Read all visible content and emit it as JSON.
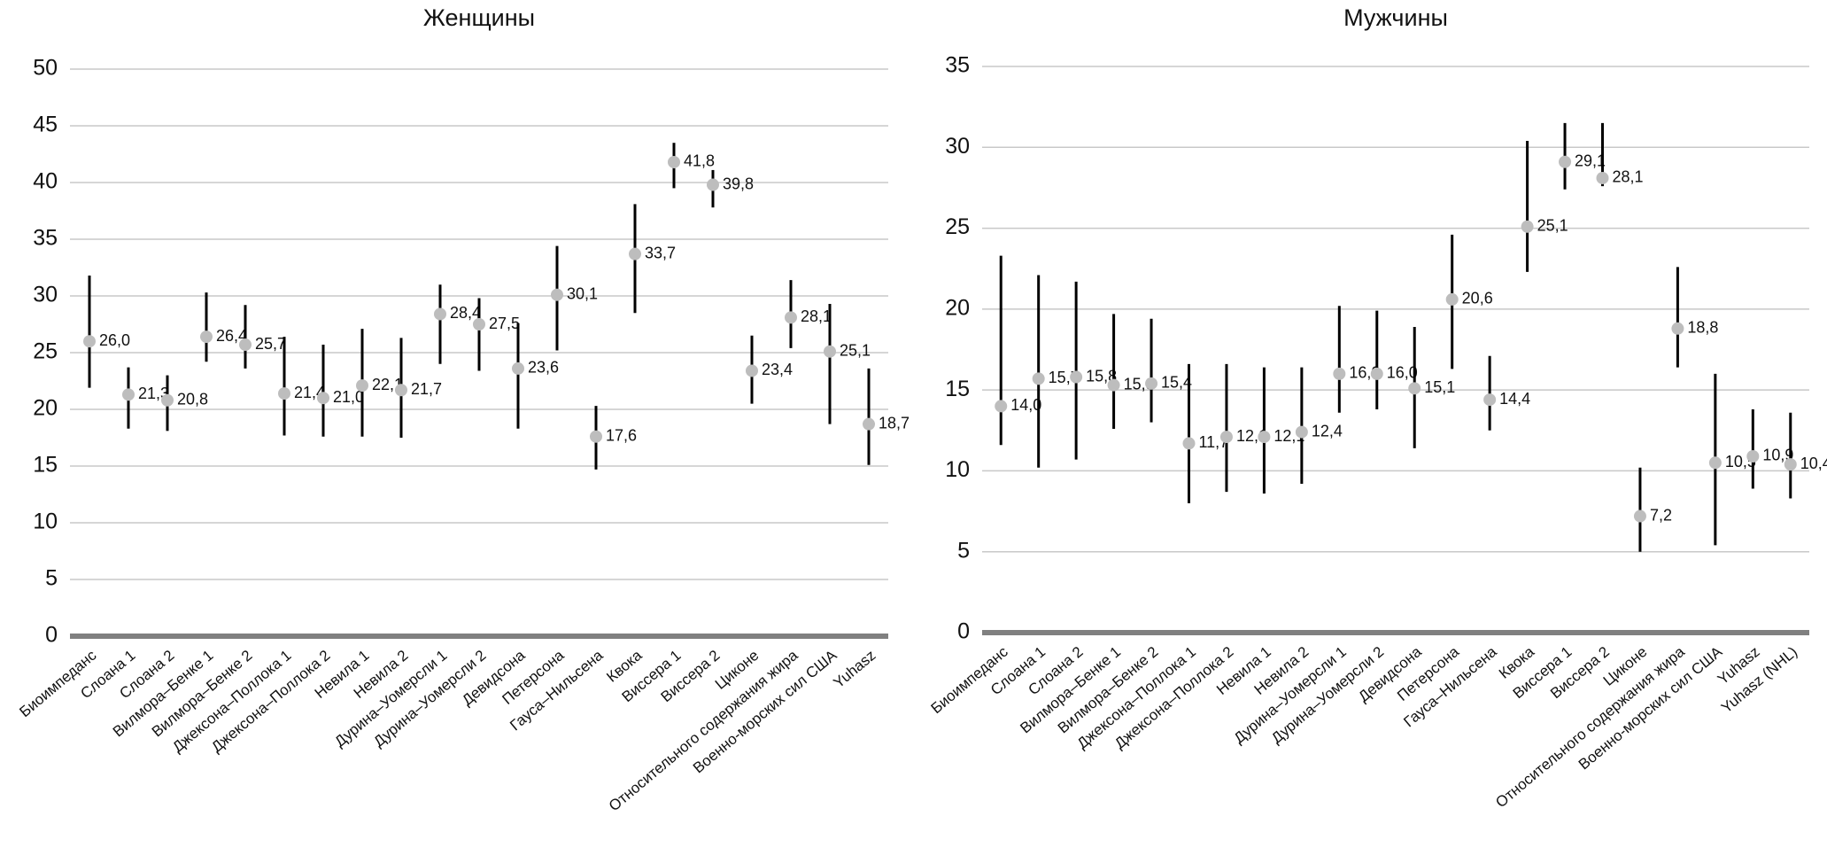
{
  "chart_data": [
    {
      "type": "dot",
      "title": "Женщины",
      "categories": [
        "Биоимпеданс",
        "Слоана 1",
        "Слоана 2",
        "Вилмора–Бенке 1",
        "Вилмора–Бенке 2",
        "Джексона–Поллока 1",
        "Джексона–Поллока 2",
        "Невила 1",
        "Невила 2",
        "Дурина–Уомерсли 1",
        "Дурина–Уомерсли 2",
        "Девидсона",
        "Петерсона",
        "Гауса–Нильсена",
        "Квока",
        "Виссера 1",
        "Виссера 2",
        "Циконе",
        "Относительного содержания жира",
        "Военно-морских сил США",
        "Yuhasz"
      ],
      "values": [
        26.0,
        21.3,
        20.8,
        26.4,
        25.7,
        21.4,
        21.0,
        22.1,
        21.7,
        28.4,
        27.5,
        23.6,
        30.1,
        17.6,
        33.7,
        41.8,
        39.8,
        23.4,
        28.1,
        25.1,
        18.7
      ],
      "value_labels": [
        "26,0",
        "21,3",
        "20,8",
        "26,4",
        "25,7",
        "21,4",
        "21,0",
        "22,1",
        "21,7",
        "28,4",
        "27,5",
        "23,6",
        "30,1",
        "17,6",
        "33,7",
        "41,8",
        "39,8",
        "23,4",
        "28,1",
        "25,1",
        "18,7"
      ],
      "low": [
        21.9,
        18.3,
        18.1,
        24.2,
        23.6,
        17.7,
        17.6,
        17.6,
        17.5,
        24.0,
        23.4,
        18.3,
        25.2,
        14.7,
        28.5,
        39.5,
        37.8,
        20.5,
        25.4,
        18.7,
        15.1
      ],
      "high": [
        31.8,
        23.7,
        23.0,
        30.3,
        29.2,
        26.4,
        25.7,
        27.1,
        26.3,
        31.0,
        29.8,
        27.6,
        34.4,
        20.3,
        38.1,
        43.5,
        41.1,
        26.5,
        31.4,
        29.3,
        23.6
      ],
      "color": "#bdbdbd",
      "bar_color": "#000000",
      "ylim": [
        0,
        50
      ],
      "yticks": [
        0,
        5,
        10,
        15,
        20,
        25,
        30,
        35,
        40,
        45,
        50
      ],
      "grid": true
    },
    {
      "type": "dot",
      "title": "Мужчины",
      "categories": [
        "Биоимпеданс",
        "Слоана 1",
        "Слоана 2",
        "Вилмора–Бенке 1",
        "Вилмора–Бенке 2",
        "Джексона–Поллока 1",
        "Джексона–Поллока 2",
        "Невила 1",
        "Невила 2",
        "Дурина–Уомерсли 1",
        "Дурина–Уомерсли 2",
        "Девидсона",
        "Петерсона",
        "Гауса–Нильсена",
        "Квока",
        "Виссера 1",
        "Виссера 2",
        "Циконе",
        "Относительного содержания жира",
        "Военно-морских сил США",
        "Yuhasz",
        "Yuhasz (NHL)"
      ],
      "values": [
        14.0,
        15.7,
        15.8,
        15.3,
        15.4,
        11.7,
        12.1,
        12.1,
        12.4,
        16.0,
        16.0,
        15.1,
        20.6,
        14.4,
        25.1,
        29.1,
        28.1,
        7.2,
        18.8,
        10.5,
        10.9,
        10.4
      ],
      "value_labels": [
        "14,0",
        "15,7",
        "15,8",
        "15,3",
        "15,4",
        "11,7",
        "12,1",
        "12,1",
        "12,4",
        "16,0",
        "16,0",
        "15,1",
        "20,6",
        "14,4",
        "25,1",
        "29,1",
        "28,1",
        "7,2",
        "18,8",
        "10,5",
        "10,9",
        "10,4"
      ],
      "low": [
        11.6,
        10.2,
        10.7,
        12.6,
        13.0,
        8.0,
        8.7,
        8.6,
        9.2,
        13.6,
        13.8,
        11.4,
        16.3,
        12.5,
        22.3,
        27.4,
        27.6,
        5.0,
        16.4,
        5.4,
        8.9,
        8.3
      ],
      "high": [
        23.3,
        22.1,
        21.7,
        19.7,
        19.4,
        16.6,
        16.6,
        16.4,
        16.4,
        20.2,
        19.9,
        18.9,
        24.6,
        17.1,
        30.4,
        31.5,
        31.5,
        10.2,
        22.6,
        16.0,
        13.8,
        13.6
      ],
      "color": "#bdbdbd",
      "bar_color": "#000000",
      "ylim": [
        0,
        35
      ],
      "yticks": [
        0,
        5,
        10,
        15,
        20,
        25,
        30,
        35
      ],
      "grid": true
    }
  ]
}
